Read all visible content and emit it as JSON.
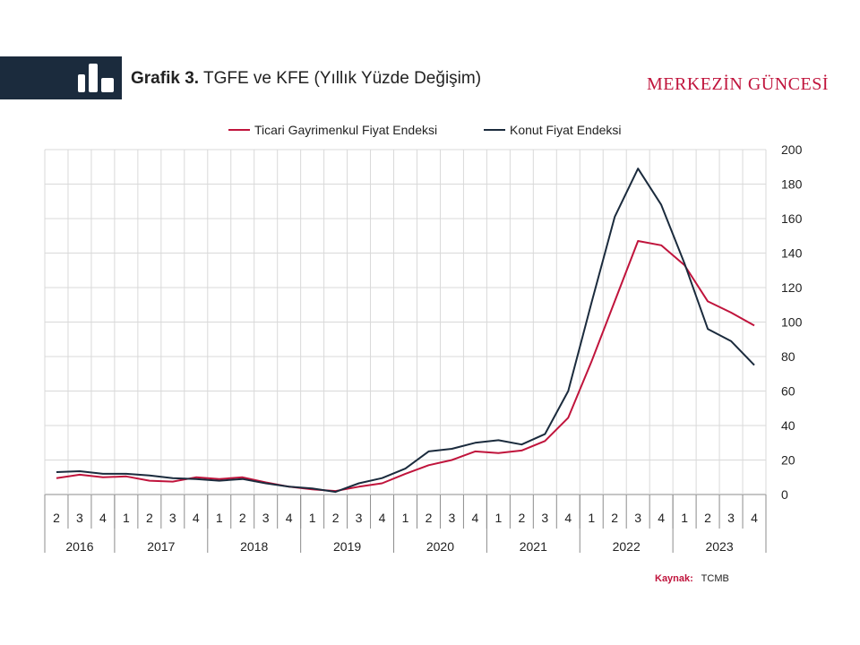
{
  "header": {
    "title_bold": "Grafik 3.",
    "title_rest": "TGFE ve KFE (Yıllık Yüzde Değişim)",
    "brand": "MERKEZİN GÜNCESİ",
    "logo_icon": "bar-chart-icon"
  },
  "source": {
    "label": "Kaynak:",
    "value": "TCMB"
  },
  "colors": {
    "tgfe": "#c0143c",
    "kfe": "#1b2b3d",
    "band": "#1b2b3d",
    "grid": "#d9d9d9"
  },
  "chart_data": {
    "type": "line",
    "legend_position": "top",
    "grid": true,
    "y_axis_side": "right",
    "ylim": [
      0,
      200
    ],
    "yticks": [
      0,
      20,
      40,
      60,
      80,
      100,
      120,
      140,
      160,
      180,
      200
    ],
    "quarters": [
      "2",
      "3",
      "4",
      "1",
      "2",
      "3",
      "4",
      "1",
      "2",
      "3",
      "4",
      "1",
      "2",
      "3",
      "4",
      "1",
      "2",
      "3",
      "4",
      "1",
      "2",
      "3",
      "4",
      "1",
      "2",
      "3",
      "4",
      "1",
      "2",
      "3",
      "4"
    ],
    "years": [
      {
        "label": "2016",
        "span": 3
      },
      {
        "label": "2017",
        "span": 4
      },
      {
        "label": "2018",
        "span": 4
      },
      {
        "label": "2019",
        "span": 4
      },
      {
        "label": "2020",
        "span": 4
      },
      {
        "label": "2021",
        "span": 4
      },
      {
        "label": "2022",
        "span": 4
      },
      {
        "label": "2023",
        "span": 4
      }
    ],
    "series": [
      {
        "name": "Ticari Gayrimenkul Fiyat Endeksi",
        "key": "tgfe",
        "values": [
          9.5,
          11.5,
          10,
          10.5,
          8,
          7.5,
          10,
          9,
          10,
          7,
          4.5,
          3,
          2,
          4.5,
          6.5,
          12,
          17,
          20,
          25,
          24,
          25.5,
          31,
          44.5,
          77,
          112,
          147,
          144.5,
          133,
          112,
          105.5,
          98
        ]
      },
      {
        "name": "Konut Fiyat Endeksi",
        "key": "kfe",
        "values": [
          13,
          13.5,
          12,
          12,
          11,
          9.5,
          9,
          8,
          9,
          6.5,
          4.5,
          3.5,
          1.5,
          6.5,
          9.5,
          15,
          25,
          26.5,
          30,
          31.5,
          29,
          35,
          60,
          111,
          161,
          189,
          168,
          134,
          96,
          89,
          75
        ]
      }
    ]
  }
}
